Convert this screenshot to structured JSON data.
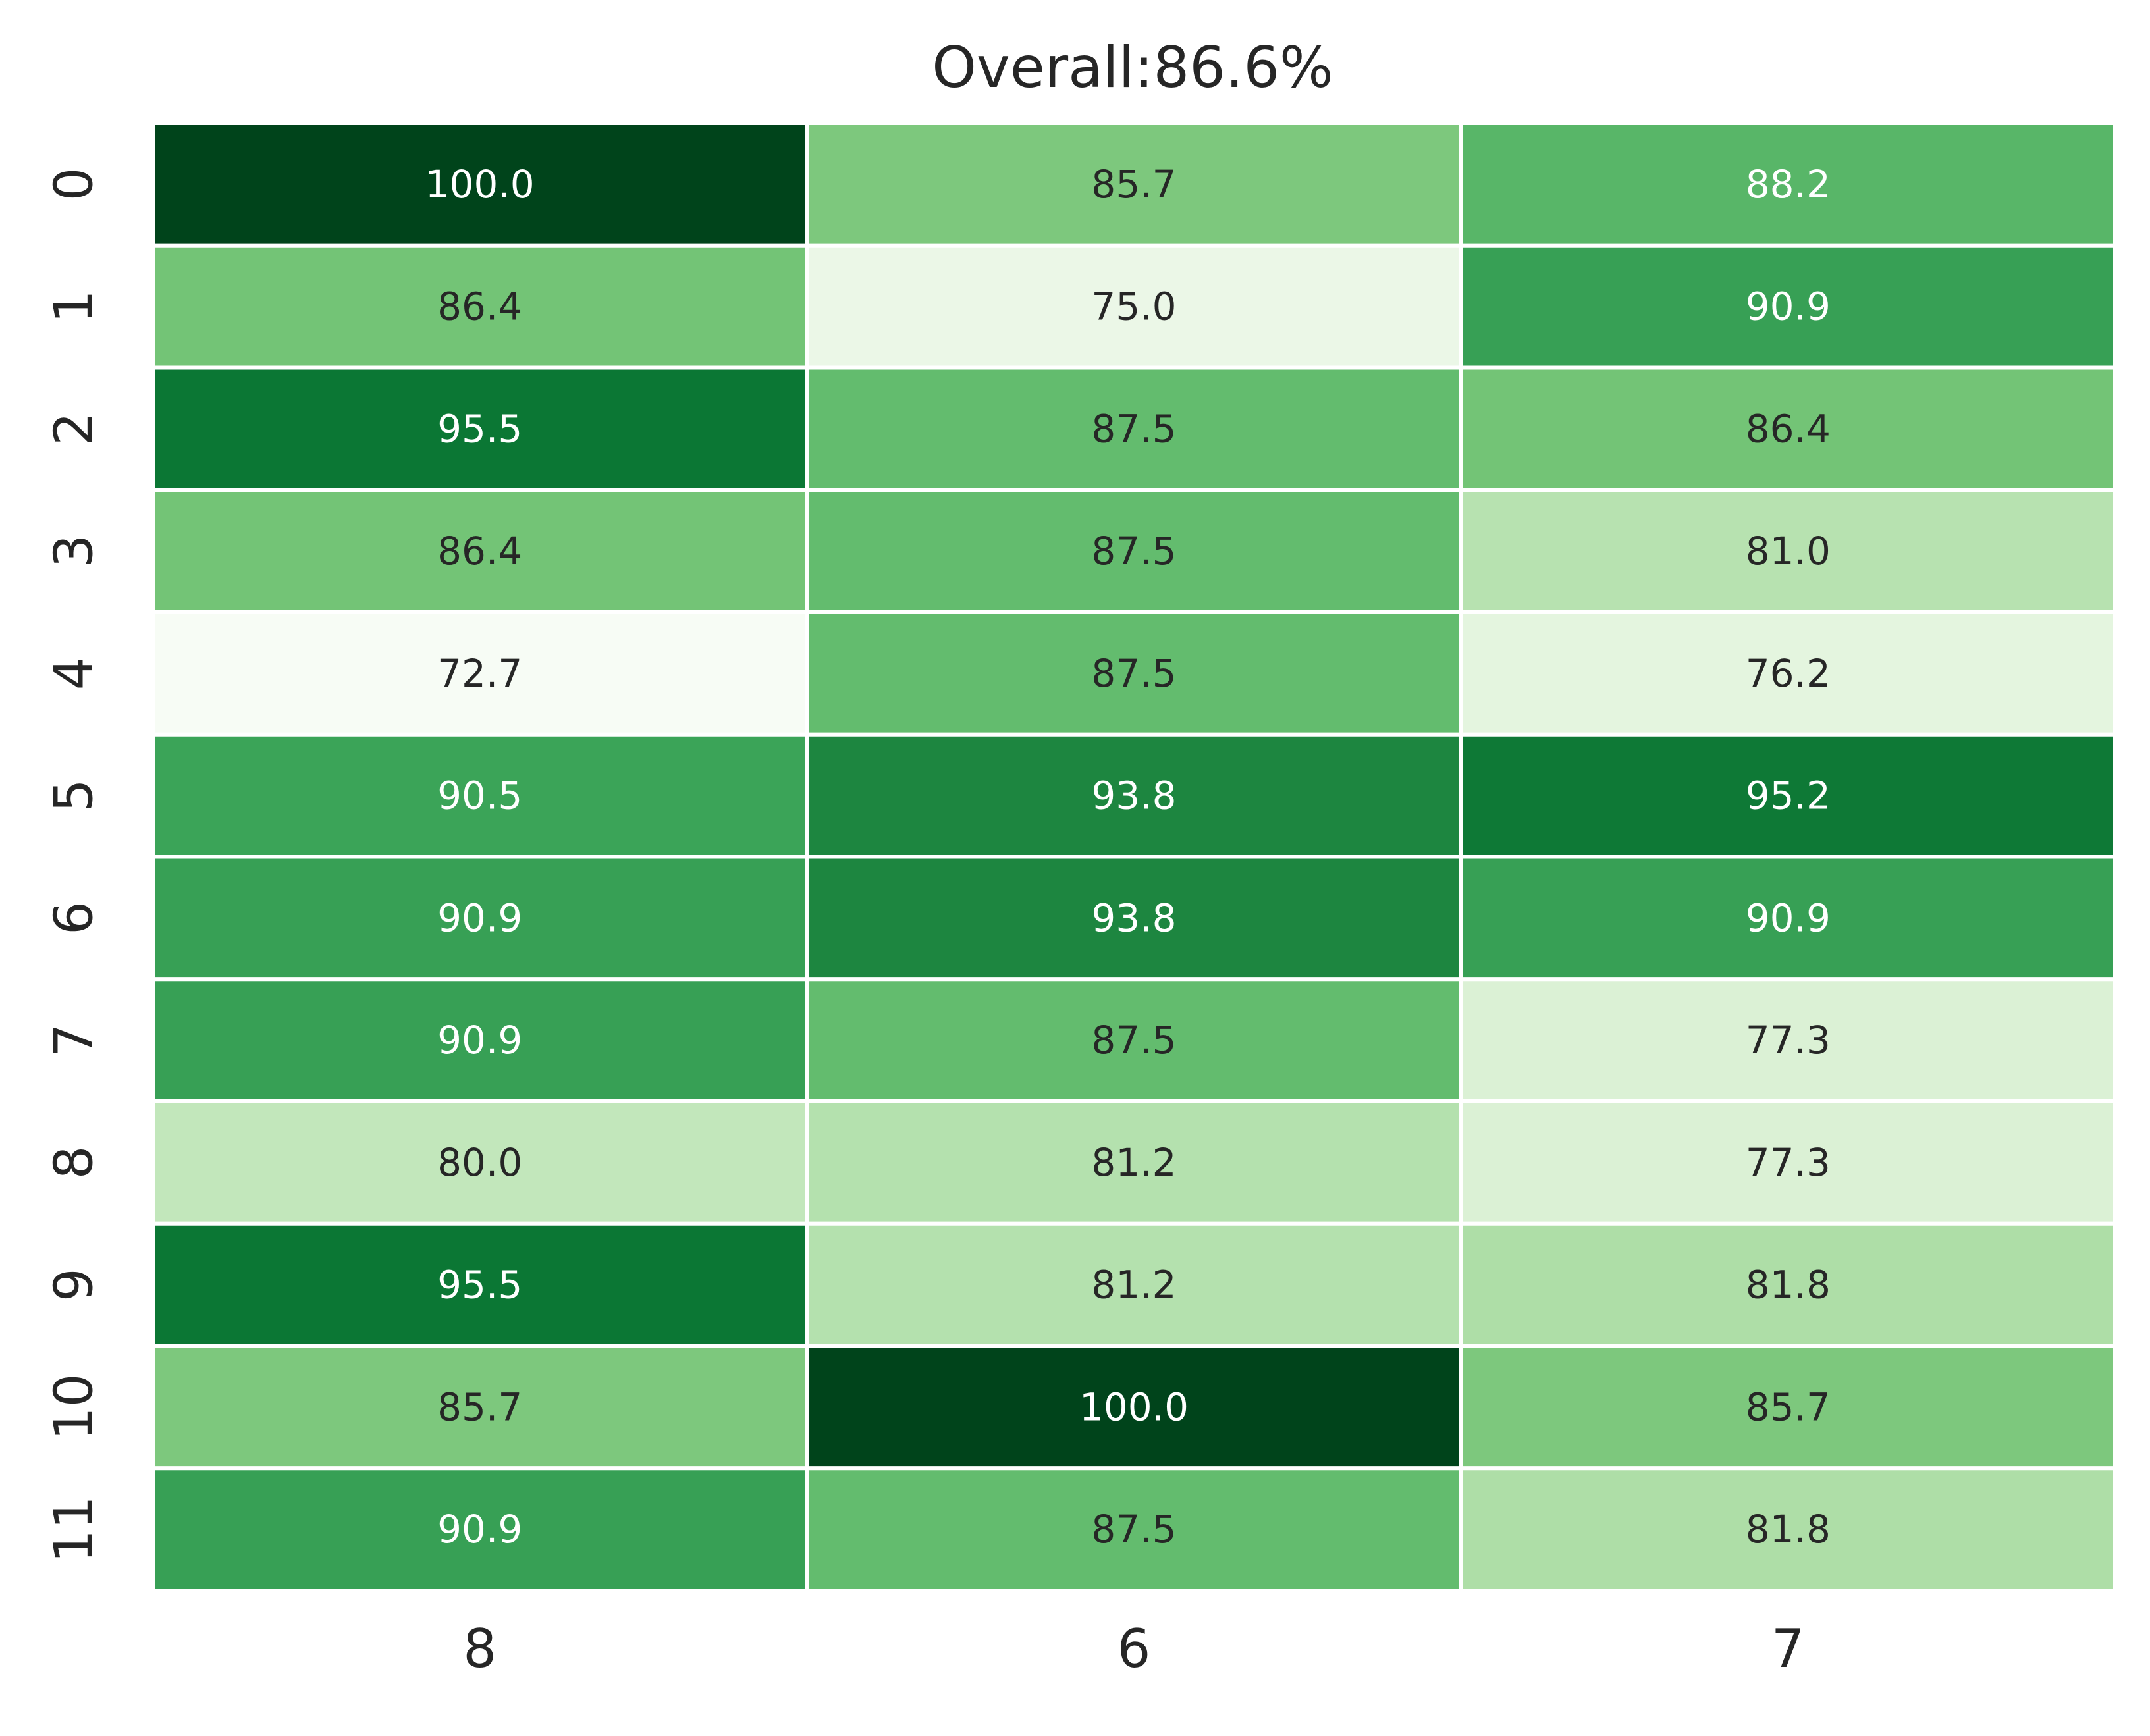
{
  "chart_data": {
    "type": "heatmap",
    "title": "Overall:86.6%",
    "x_categories": [
      "8",
      "6",
      "7"
    ],
    "y_categories": [
      "0",
      "1",
      "2",
      "3",
      "4",
      "5",
      "6",
      "7",
      "8",
      "9",
      "10",
      "11"
    ],
    "values": [
      [
        100.0,
        85.7,
        88.2
      ],
      [
        86.4,
        75.0,
        90.9
      ],
      [
        95.5,
        87.5,
        86.4
      ],
      [
        86.4,
        87.5,
        81.0
      ],
      [
        72.7,
        87.5,
        76.2
      ],
      [
        90.5,
        93.8,
        95.2
      ],
      [
        90.9,
        93.8,
        90.9
      ],
      [
        90.9,
        87.5,
        77.3
      ],
      [
        80.0,
        81.2,
        77.3
      ],
      [
        95.5,
        81.2,
        81.8
      ],
      [
        85.7,
        100.0,
        85.7
      ],
      [
        90.9,
        87.5,
        81.8
      ]
    ],
    "value_range": [
      72.7,
      100.0
    ],
    "colormap": "Greens",
    "colorbar": false,
    "annotations": true,
    "grid": false
  }
}
